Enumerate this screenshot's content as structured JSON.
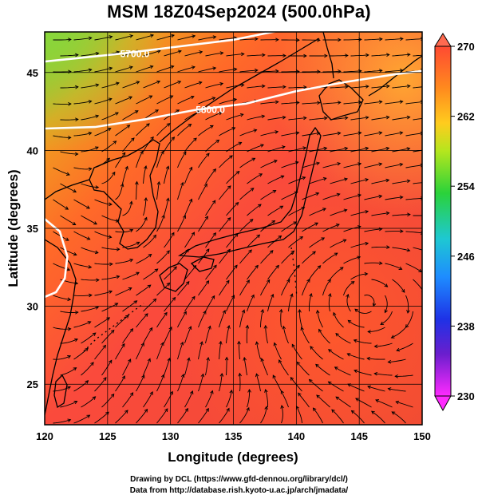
{
  "title": "MSM 18Z04Sep2024 (500.0hPa)",
  "map": {
    "lon_range": [
      120,
      150
    ],
    "lat_range": [
      22.4,
      47.6
    ],
    "x_ticks": [
      120,
      125,
      130,
      135,
      140,
      145,
      150
    ],
    "y_ticks": [
      25,
      30,
      35,
      40,
      45
    ],
    "xlabel": "Longitude (degrees)",
    "ylabel": "Latitude  (degrees)",
    "contours": [
      {
        "label": "5700.0",
        "lonlat": [
          [
            120,
            45.7
          ],
          [
            126,
            46.2
          ],
          [
            130,
            46.6
          ],
          [
            135,
            47.1
          ],
          [
            140,
            47.9
          ]
        ]
      },
      {
        "label": "5800.0",
        "lonlat": [
          [
            120,
            41.4
          ],
          [
            124,
            41.5
          ],
          [
            128,
            42.0
          ],
          [
            132,
            42.6
          ],
          [
            136,
            43.0
          ],
          [
            140,
            43.8
          ],
          [
            144,
            44.4
          ],
          [
            148,
            44.9
          ],
          [
            150,
            45.1
          ]
        ]
      },
      {
        "label": "",
        "lonlat": [
          [
            120,
            35.6
          ],
          [
            121.2,
            34.8
          ],
          [
            121.8,
            33.2
          ],
          [
            121.6,
            31.8
          ],
          [
            120.9,
            30.9
          ],
          [
            120,
            30.6
          ]
        ]
      }
    ]
  },
  "colorbar": {
    "ticks": [
      "270",
      "262",
      "254",
      "246",
      "238",
      "230"
    ],
    "colors": [
      "#ff5a38",
      "#ff8a1e",
      "#ffc81e",
      "#c8e61e",
      "#3cd23c",
      "#1ec8c8",
      "#1e8cff",
      "#1e3cff",
      "#5a1ecd",
      "#c81ec8",
      "#ff2aff"
    ]
  },
  "credits": {
    "line1": "Drawing by DCL (https://www.gfd-dennou.org/library/dcl/)",
    "line2": "Data from http://database.rish.kyoto-u.ac.jp/arch/jmadata/"
  }
}
